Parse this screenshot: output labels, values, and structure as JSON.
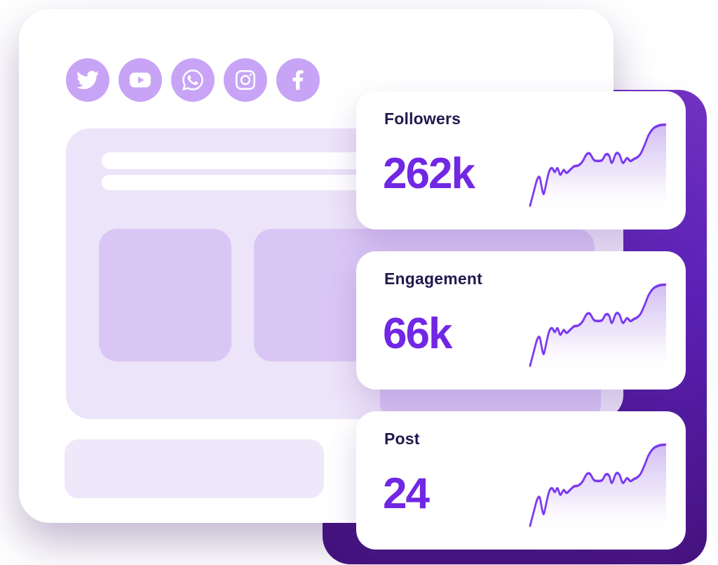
{
  "social_bar": {
    "icons": [
      {
        "name": "twitter"
      },
      {
        "name": "youtube"
      },
      {
        "name": "whatsapp"
      },
      {
        "name": "instagram"
      },
      {
        "name": "facebook"
      }
    ]
  },
  "stat_cards": [
    {
      "label": "Followers",
      "value": "262k"
    },
    {
      "label": "Engagement",
      "value": "66k"
    },
    {
      "label": "Post",
      "value": "24"
    }
  ],
  "colors": {
    "icon_circle": "#C8A4F6",
    "content_bg": "#ECE4F9",
    "square_bg": "#DAC6F5",
    "footer_bg": "#EEE8FA",
    "title_text": "#221A4E",
    "value_text": "#7127E3",
    "spark_stroke": "#7C3AED",
    "spark_fill_top": "#C9B2F0",
    "panel_top": "#7233C4",
    "panel_mid": "#5B21B6",
    "panel_bottom": "#45127E"
  },
  "chart_data": {
    "type": "line",
    "title": "",
    "xlabel": "",
    "ylabel": "",
    "legend": "none",
    "axes_visible": false,
    "description": "Identical upward-trending sparkline with gradient area fill, repeated in each KPI card",
    "series": [
      {
        "name": "Followers trend",
        "value_label": "262k"
      },
      {
        "name": "Engagement trend",
        "value_label": "66k"
      },
      {
        "name": "Post trend",
        "value_label": "24"
      }
    ],
    "sparkline_points_normalized": [
      [
        2,
        90
      ],
      [
        7,
        76
      ],
      [
        12,
        62
      ],
      [
        16,
        59
      ],
      [
        19,
        70
      ],
      [
        22,
        77
      ],
      [
        26,
        64
      ],
      [
        30,
        52
      ],
      [
        34,
        49
      ],
      [
        38,
        53
      ],
      [
        42,
        49
      ],
      [
        46,
        56
      ],
      [
        51,
        51
      ],
      [
        55,
        54
      ],
      [
        60,
        51
      ],
      [
        66,
        47
      ],
      [
        72,
        46
      ],
      [
        78,
        42
      ],
      [
        84,
        34
      ],
      [
        89,
        33
      ],
      [
        95,
        40
      ],
      [
        101,
        41
      ],
      [
        107,
        40
      ],
      [
        112,
        34
      ],
      [
        117,
        35
      ],
      [
        121,
        43
      ],
      [
        127,
        33
      ],
      [
        132,
        34
      ],
      [
        137,
        43
      ],
      [
        143,
        38
      ],
      [
        148,
        41
      ],
      [
        153,
        39
      ],
      [
        158,
        37
      ],
      [
        163,
        33
      ],
      [
        169,
        23
      ],
      [
        175,
        12
      ],
      [
        182,
        5
      ],
      [
        190,
        2
      ],
      [
        200,
        1
      ]
    ]
  }
}
